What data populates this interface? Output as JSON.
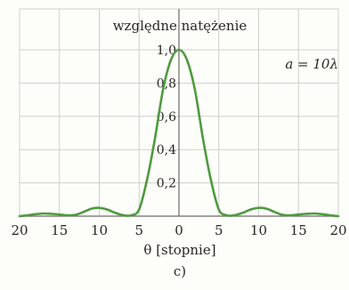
{
  "chart_data": {
    "type": "line",
    "title": "względne natężenie",
    "annotation": "a = 10λ",
    "xlabel": "θ [stopnie]",
    "caption": "c)",
    "xlim": [
      -20,
      20
    ],
    "ylim": [
      0,
      1.0
    ],
    "grid": true,
    "x_ticks": [
      -20,
      -15,
      -10,
      -5,
      0,
      5,
      10,
      15,
      20
    ],
    "x_tick_labels": [
      "20",
      "15",
      "10",
      "5",
      "0",
      "5",
      "10",
      "15",
      "20"
    ],
    "y_ticks": [
      0.2,
      0.4,
      0.6,
      0.8,
      1.0
    ],
    "y_tick_labels": [
      "0,2",
      "0,4",
      "0,6",
      "0,8",
      "1,0"
    ],
    "series": [
      {
        "x": [
          -20,
          -19,
          -18,
          -17,
          -16,
          -15,
          -14,
          -13,
          -12,
          -11,
          -10,
          -9,
          -8,
          -7,
          -6,
          -5,
          -4,
          -3,
          -2,
          -1,
          0,
          1,
          2,
          3,
          4,
          5,
          6,
          7,
          8,
          9,
          10,
          11,
          12,
          13,
          14,
          15,
          16,
          17,
          18,
          19,
          20
        ],
        "values": [
          0.0,
          0.005,
          0.012,
          0.016,
          0.014,
          0.01,
          0.005,
          0.008,
          0.025,
          0.045,
          0.05,
          0.04,
          0.02,
          0.006,
          0.005,
          0.04,
          0.22,
          0.47,
          0.76,
          0.94,
          1.0,
          0.94,
          0.76,
          0.47,
          0.22,
          0.04,
          0.005,
          0.006,
          0.02,
          0.04,
          0.05,
          0.045,
          0.025,
          0.008,
          0.005,
          0.01,
          0.014,
          0.016,
          0.012,
          0.005,
          0.0
        ]
      }
    ],
    "colors": {
      "curve": "#4e9a3f",
      "grid": "#cfcfca",
      "axis": "#6e6a66"
    }
  }
}
